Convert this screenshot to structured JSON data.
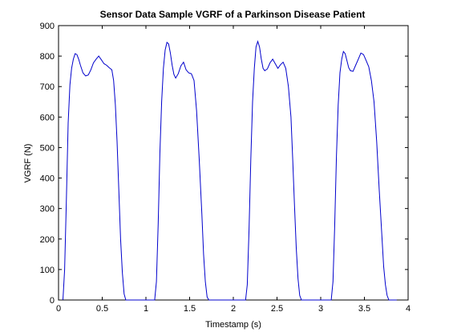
{
  "chart_data": {
    "type": "line",
    "title": "Sensor Data Sample VGRF of a Parkinson Disease Patient",
    "xlabel": "Timestamp (s)",
    "ylabel": "VGRF (N)",
    "xlim": [
      0,
      4
    ],
    "ylim": [
      0,
      900
    ],
    "xticks": [
      0,
      0.5,
      1,
      1.5,
      2,
      2.5,
      3,
      3.5,
      4
    ],
    "xtick_labels": [
      "0",
      "0.5",
      "1",
      "1.5",
      "2",
      "2.5",
      "3",
      "3.5",
      "4"
    ],
    "yticks": [
      0,
      100,
      200,
      300,
      400,
      500,
      600,
      700,
      800,
      900
    ],
    "ytick_labels": [
      "0",
      "100",
      "200",
      "300",
      "400",
      "500",
      "600",
      "700",
      "800",
      "900"
    ],
    "grid": false,
    "line_color": "#0000cc",
    "series": [
      {
        "x": [
          0.05,
          0.07,
          0.09,
          0.11,
          0.13,
          0.15,
          0.17,
          0.19,
          0.21,
          0.23,
          0.25,
          0.28,
          0.31,
          0.34,
          0.37,
          0.4,
          0.43,
          0.46,
          0.49,
          0.52,
          0.55,
          0.58,
          0.61,
          0.63,
          0.65,
          0.67,
          0.69,
          0.71,
          0.73,
          0.75,
          0.77,
          0.78,
          0.8,
          1.0,
          1.1,
          1.12,
          1.14,
          1.16,
          1.18,
          1.2,
          1.22,
          1.24,
          1.26,
          1.28,
          1.3,
          1.32,
          1.34,
          1.37,
          1.4,
          1.43,
          1.46,
          1.49,
          1.52,
          1.55,
          1.58,
          1.61,
          1.64,
          1.66,
          1.68,
          1.7,
          1.72,
          1.74,
          1.76,
          1.78,
          1.8,
          1.82,
          1.84,
          2.05,
          2.14,
          2.16,
          2.18,
          2.2,
          2.22,
          2.24,
          2.26,
          2.28,
          2.3,
          2.32,
          2.34,
          2.36,
          2.39,
          2.42,
          2.45,
          2.48,
          2.51,
          2.54,
          2.57,
          2.6,
          2.63,
          2.66,
          2.68,
          2.7,
          2.72,
          2.74,
          2.76,
          2.78,
          2.8,
          2.82,
          2.83,
          3.05,
          3.12,
          3.14,
          3.16,
          3.18,
          3.2,
          3.22,
          3.24,
          3.26,
          3.28,
          3.3,
          3.32,
          3.34,
          3.37,
          3.4,
          3.43,
          3.46,
          3.49,
          3.52,
          3.55,
          3.58,
          3.61,
          3.64,
          3.67,
          3.7,
          3.72,
          3.74,
          3.76,
          3.78,
          3.8,
          3.82,
          3.84,
          3.86,
          3.87
        ],
        "y": [
          0,
          100,
          330,
          580,
          705,
          760,
          790,
          808,
          805,
          790,
          770,
          745,
          735,
          738,
          755,
          778,
          790,
          800,
          788,
          775,
          770,
          762,
          755,
          720,
          640,
          520,
          360,
          200,
          90,
          20,
          0,
          0,
          0,
          0,
          0,
          60,
          250,
          480,
          650,
          760,
          820,
          845,
          840,
          810,
          770,
          740,
          728,
          742,
          768,
          780,
          755,
          745,
          742,
          720,
          620,
          460,
          280,
          150,
          60,
          10,
          0,
          0,
          0,
          0,
          0,
          0,
          0,
          0,
          0,
          50,
          230,
          460,
          650,
          760,
          830,
          848,
          830,
          790,
          760,
          752,
          758,
          778,
          790,
          775,
          760,
          772,
          780,
          760,
          700,
          600,
          460,
          310,
          170,
          70,
          15,
          0,
          0,
          0,
          0,
          0,
          0,
          60,
          240,
          470,
          640,
          745,
          790,
          815,
          808,
          785,
          762,
          752,
          750,
          770,
          790,
          810,
          805,
          785,
          765,
          720,
          650,
          520,
          360,
          210,
          110,
          50,
          15,
          0,
          0,
          0,
          0,
          0,
          0
        ]
      }
    ]
  }
}
